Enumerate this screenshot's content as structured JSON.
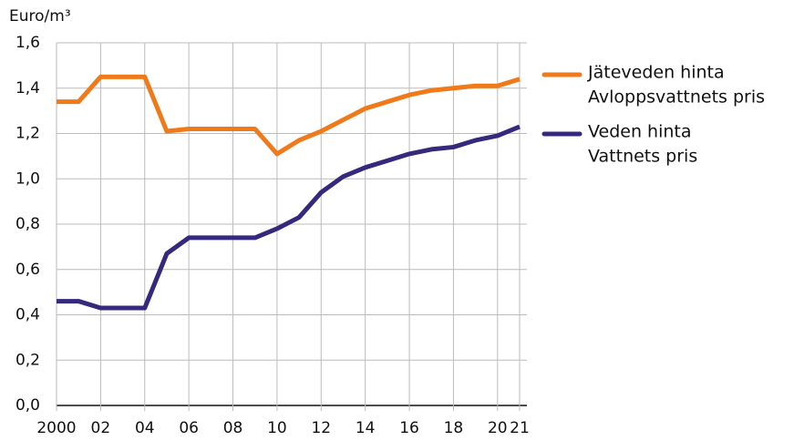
{
  "chart_data": {
    "type": "line",
    "ylabel": "Euro/m³",
    "x": [
      2000,
      2001,
      2002,
      2003,
      2004,
      2005,
      2006,
      2007,
      2008,
      2009,
      2010,
      2011,
      2012,
      2013,
      2014,
      2015,
      2016,
      2017,
      2018,
      2019,
      2020,
      2021
    ],
    "series": [
      {
        "name": [
          "Jäteveden hinta",
          "Avloppsvattnets pris"
        ],
        "color": "#f07a1a",
        "values": [
          1.34,
          1.34,
          1.45,
          1.45,
          1.45,
          1.21,
          1.22,
          1.22,
          1.22,
          1.22,
          1.11,
          1.17,
          1.21,
          1.26,
          1.31,
          1.34,
          1.37,
          1.39,
          1.4,
          1.41,
          1.41,
          1.44
        ]
      },
      {
        "name": [
          "Veden hinta",
          "Vattnets pris"
        ],
        "color": "#35297e",
        "values": [
          0.46,
          0.46,
          0.43,
          0.43,
          0.43,
          0.67,
          0.74,
          0.74,
          0.74,
          0.74,
          0.78,
          0.83,
          0.94,
          1.01,
          1.05,
          1.08,
          1.11,
          1.13,
          1.14,
          1.17,
          1.19,
          1.23
        ]
      }
    ],
    "xlim": [
      2000,
      2021
    ],
    "xticks": [
      2000,
      {
        "value": 2002,
        "label": "02"
      },
      {
        "value": 2004,
        "label": "04"
      },
      {
        "value": 2006,
        "label": "06"
      },
      {
        "value": 2008,
        "label": "08"
      },
      {
        "value": 2010,
        "label": "10"
      },
      {
        "value": 2012,
        "label": "12"
      },
      {
        "value": 2014,
        "label": "14"
      },
      {
        "value": 2016,
        "label": "16"
      },
      {
        "value": 2018,
        "label": "18"
      },
      {
        "value": 2020,
        "label": "20"
      },
      {
        "value": 2021,
        "label": "21"
      }
    ],
    "ylim": [
      0,
      1.6
    ],
    "yticks": [
      {
        "value": 0,
        "label": "0,0"
      },
      {
        "value": 0.2,
        "label": "0,2"
      },
      {
        "value": 0.4,
        "label": "0,4"
      },
      {
        "value": 0.6,
        "label": "0,6"
      },
      {
        "value": 0.8,
        "label": "0,8"
      },
      {
        "value": 1.0,
        "label": "1,0"
      },
      {
        "value": 1.2,
        "label": "1,2"
      },
      {
        "value": 1.4,
        "label": "1,4"
      },
      {
        "value": 1.6,
        "label": "1,6"
      }
    ],
    "grid": true,
    "legend": "right"
  }
}
